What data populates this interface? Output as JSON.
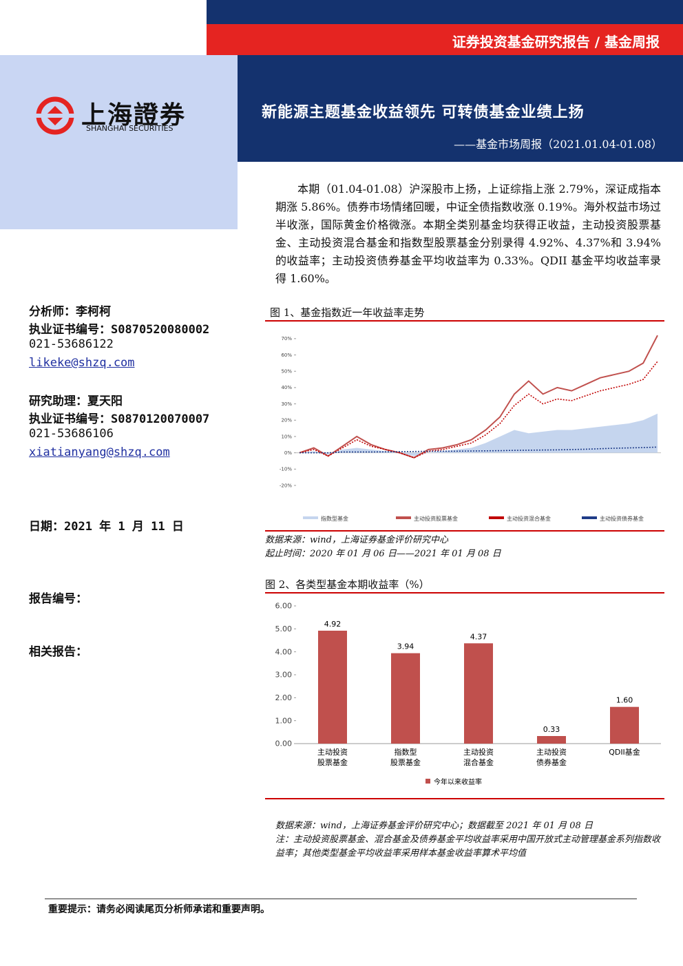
{
  "header": {
    "category": "证券投资基金研究报告 / 基金周报",
    "title": "新能源主题基金收益领先 可转债基金业绩上扬",
    "subtitle": "——基金市场周报（2021.01.04-01.08）"
  },
  "logo": {
    "name_cn": "上海證券",
    "name_en": "SHANGHAI SECURITIES"
  },
  "sidebar": {
    "analyst": "分析师：李柯柯",
    "analyst_cert": "执业证书编号：S0870520080002",
    "analyst_phone": "021-53686122",
    "analyst_email": "likeke@shzq.com",
    "assistant": "研究助理：夏天阳",
    "assistant_cert": "执业证书编号：S0870120070007",
    "assistant_phone": "021-53686106",
    "assistant_email": "xiatianyang@shzq.com",
    "date": "日期：2021 年 1 月 11 日",
    "report_no": "报告编号：",
    "related": "相关报告："
  },
  "summary": "本期（01.04-01.08）沪深股市上扬，上证综指上涨 2.79%，深证成指本期涨 5.86%。债券市场情绪回暖，中证全债指数收涨 0.19%。海外权益市场过半收涨，国际黄金价格微涨。本期全类别基金均获得正收益，主动投资股票基金、主动投资混合基金和指数型股票基金分别录得 4.92%、4.37%和 3.94%的收益率；主动投资债券基金平均收益率为 0.33%。QDII 基金平均收益率录得 1.60%。",
  "figure1": {
    "caption": "图 1、基金指数近一年收益率走势",
    "source": "数据来源：wind，上海证券基金评价研究中心",
    "period": "起止时间：2020 年 01 月 06 日——2021 年 01 月 08 日",
    "chart": {
      "type": "line",
      "ylim": [
        -20,
        75
      ],
      "yticks": [
        {
          "value": -20,
          "label": "-20%"
        },
        {
          "value": -10,
          "label": "-10%"
        },
        {
          "value": 0,
          "label": "0%"
        },
        {
          "value": 10,
          "label": "10%"
        },
        {
          "value": 20,
          "label": "20%"
        },
        {
          "value": 30,
          "label": "30%"
        },
        {
          "value": 40,
          "label": "40%"
        },
        {
          "value": 50,
          "label": "50%"
        },
        {
          "value": 60,
          "label": "60%"
        },
        {
          "value": 70,
          "label": "70%"
        }
      ],
      "series": [
        {
          "name": "指数型基金",
          "color": "#c5d5ee",
          "style": "area",
          "values": [
            0,
            1,
            -1,
            2,
            3,
            2,
            1,
            0,
            -2,
            0,
            1,
            2,
            3,
            6,
            10,
            14,
            12,
            13,
            14,
            14,
            15,
            16,
            17,
            18,
            20,
            24
          ]
        },
        {
          "name": "主动投资股票基金",
          "color": "#c0504d",
          "style": "solid",
          "values": [
            0,
            3,
            -2,
            4,
            10,
            5,
            2,
            0,
            -3,
            2,
            3,
            5,
            8,
            14,
            22,
            36,
            44,
            36,
            40,
            38,
            42,
            46,
            48,
            50,
            55,
            72
          ]
        },
        {
          "name": "主动投资混合基金",
          "color": "#c00000",
          "style": "dotted",
          "values": [
            0,
            2,
            -2,
            3,
            8,
            4,
            2,
            0,
            -3,
            1,
            2,
            4,
            6,
            11,
            18,
            29,
            36,
            30,
            33,
            32,
            35,
            38,
            40,
            42,
            45,
            56
          ]
        },
        {
          "name": "主动投资债券基金",
          "color": "#1f3c88",
          "style": "dotted",
          "values": [
            0,
            0,
            0,
            0.5,
            0.5,
            0.5,
            0.6,
            0.7,
            0.8,
            0.9,
            1,
            1,
            1.1,
            1.2,
            1.3,
            1.5,
            1.6,
            1.7,
            1.8,
            2,
            2.2,
            2.5,
            2.8,
            3,
            3.2,
            3.5
          ]
        }
      ]
    }
  },
  "figure2": {
    "caption": "图 2、各类型基金本期收益率（%）",
    "source": "数据来源：wind，上海证券基金评价研究中心；数据截至 2021 年 01 月 08 日",
    "note": "注：主动投资股票基金、混合基金及债券基金平均收益率采用中国开放式主动管理基金系列指数收益率；其他类型基金平均收益率采用样本基金收益率算术平均值",
    "chart": {
      "type": "bar",
      "categories": [
        [
          "主动投资",
          "股票基金"
        ],
        [
          "指数型",
          "股票基金"
        ],
        [
          "主动投资",
          "混合基金"
        ],
        [
          "主动投资",
          "债券基金"
        ],
        [
          "QDII基金"
        ]
      ],
      "series": [
        {
          "name": "今年以来收益率",
          "color": "#c0504d",
          "values": [
            4.92,
            3.94,
            4.37,
            0.33,
            1.6
          ],
          "value_labels": [
            "4.92",
            "3.94",
            "4.37",
            "0.33",
            "1.60"
          ]
        }
      ],
      "ylim": [
        0,
        6
      ],
      "yticks": [
        {
          "value": 0,
          "label": "0.00"
        },
        {
          "value": 1,
          "label": "1.00"
        },
        {
          "value": 2,
          "label": "2.00"
        },
        {
          "value": 3,
          "label": "3.00"
        },
        {
          "value": 4,
          "label": "4.00"
        },
        {
          "value": 5,
          "label": "5.00"
        },
        {
          "value": 6,
          "label": "6.00"
        }
      ]
    }
  },
  "footer": "重要提示：请务必阅读尾页分析师承诺和重要声明。"
}
